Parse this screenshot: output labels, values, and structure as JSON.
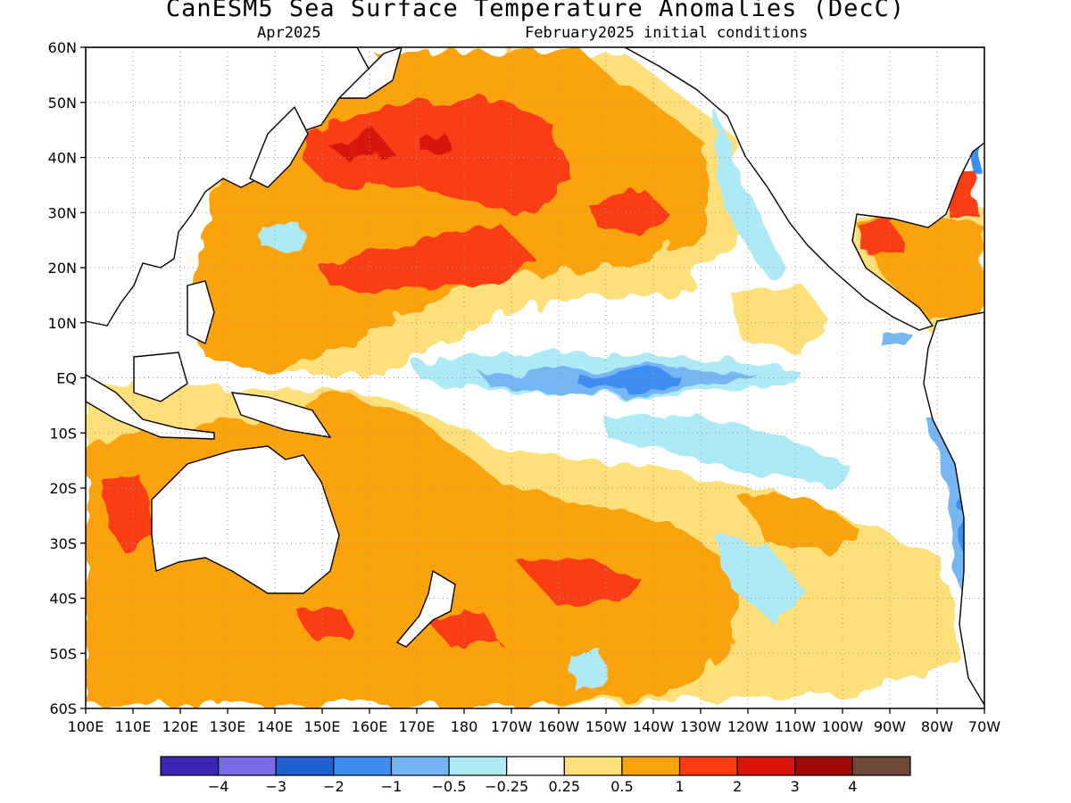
{
  "title": "CanESM5 Sea Surface Temperature Anomalies (DecC)",
  "subtitle_left": "Apr2025",
  "subtitle_right": "February2025 initial conditions",
  "lat_labels": [
    "60N",
    "50N",
    "40N",
    "30N",
    "20N",
    "10N",
    "EQ",
    "10S",
    "20S",
    "30S",
    "40S",
    "50S",
    "60S"
  ],
  "lon_labels": [
    "100E",
    "110E",
    "120E",
    "130E",
    "140E",
    "150E",
    "160E",
    "170E",
    "180",
    "170W",
    "160W",
    "150W",
    "140W",
    "130W",
    "120W",
    "110W",
    "100W",
    "90W",
    "80W",
    "70W"
  ],
  "colorbar": {
    "colors": [
      "#3a25b5",
      "#7c6be6",
      "#1f5fd0",
      "#3e8ef0",
      "#74b6f3",
      "#aeeaf5",
      "#ffffff",
      "#fde07a",
      "#fba30d",
      "#fb3c12",
      "#d81508",
      "#a00a06",
      "#6f4838"
    ],
    "labels": [
      "−4",
      "−3",
      "−2",
      "−1",
      "−0.5",
      "−0.25",
      "0.25",
      "0.5",
      "1",
      "2",
      "3",
      "4"
    ]
  },
  "colors": {
    "ocean_neutral": "#ffffff",
    "land": "#ffffff",
    "coast": "#000000",
    "grid": "#999999"
  }
}
